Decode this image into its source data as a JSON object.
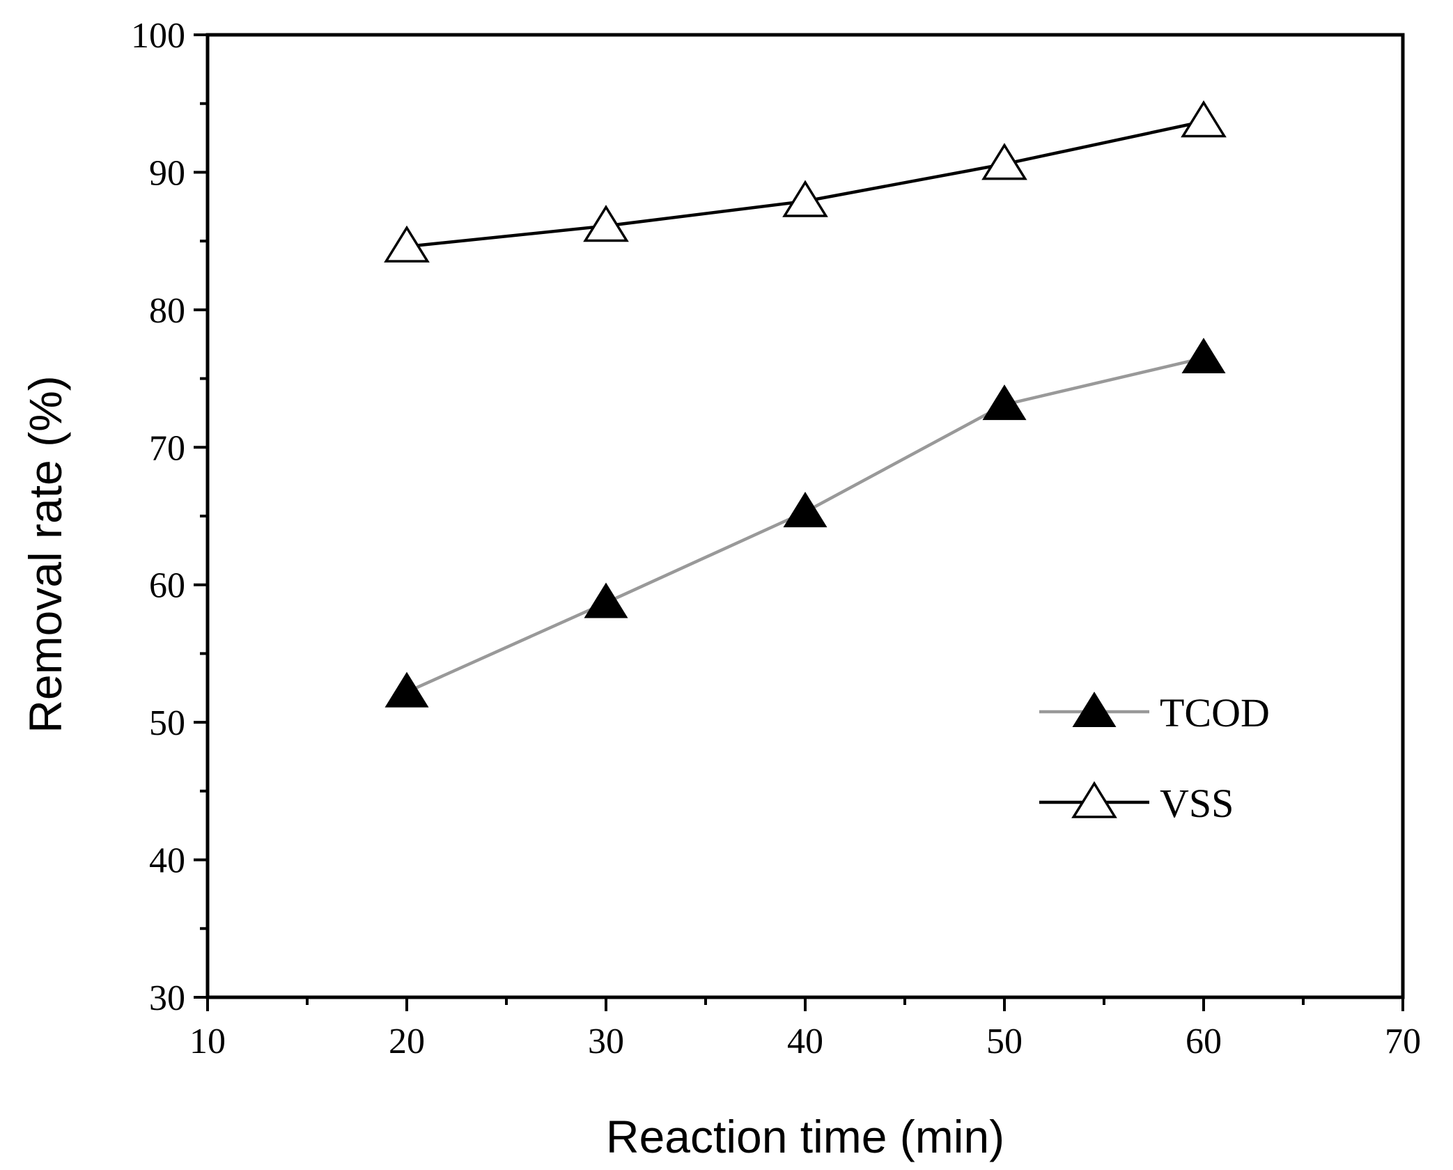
{
  "chart_data": {
    "type": "line",
    "xlabel": "Reaction time (min)",
    "ylabel": "Removal rate (%)",
    "xlim": [
      10,
      70
    ],
    "ylim": [
      30,
      100
    ],
    "x_ticks": [
      10,
      20,
      30,
      40,
      50,
      60,
      70
    ],
    "y_ticks": [
      30,
      40,
      50,
      60,
      70,
      80,
      90,
      100
    ],
    "x_tick_labels": [
      "10",
      "20",
      "30",
      "40",
      "50",
      "60",
      "70"
    ],
    "y_tick_labels": [
      "30",
      "40",
      "50",
      "60",
      "70",
      "80",
      "90",
      "100"
    ],
    "grid": false,
    "legend_position": "lower-right",
    "series": [
      {
        "name": "TCOD",
        "x": [
          20,
          30,
          40,
          50,
          60
        ],
        "values": [
          52.2,
          58.7,
          65.3,
          73.1,
          76.5
        ],
        "marker": "filled-triangle",
        "line_color": "#999999",
        "marker_color": "#000000"
      },
      {
        "name": "VSS",
        "x": [
          20,
          30,
          40,
          50,
          60
        ],
        "values": [
          84.6,
          86.1,
          87.9,
          90.6,
          93.7
        ],
        "marker": "open-triangle",
        "line_color": "#000000",
        "marker_color": "#ffffff"
      }
    ]
  }
}
